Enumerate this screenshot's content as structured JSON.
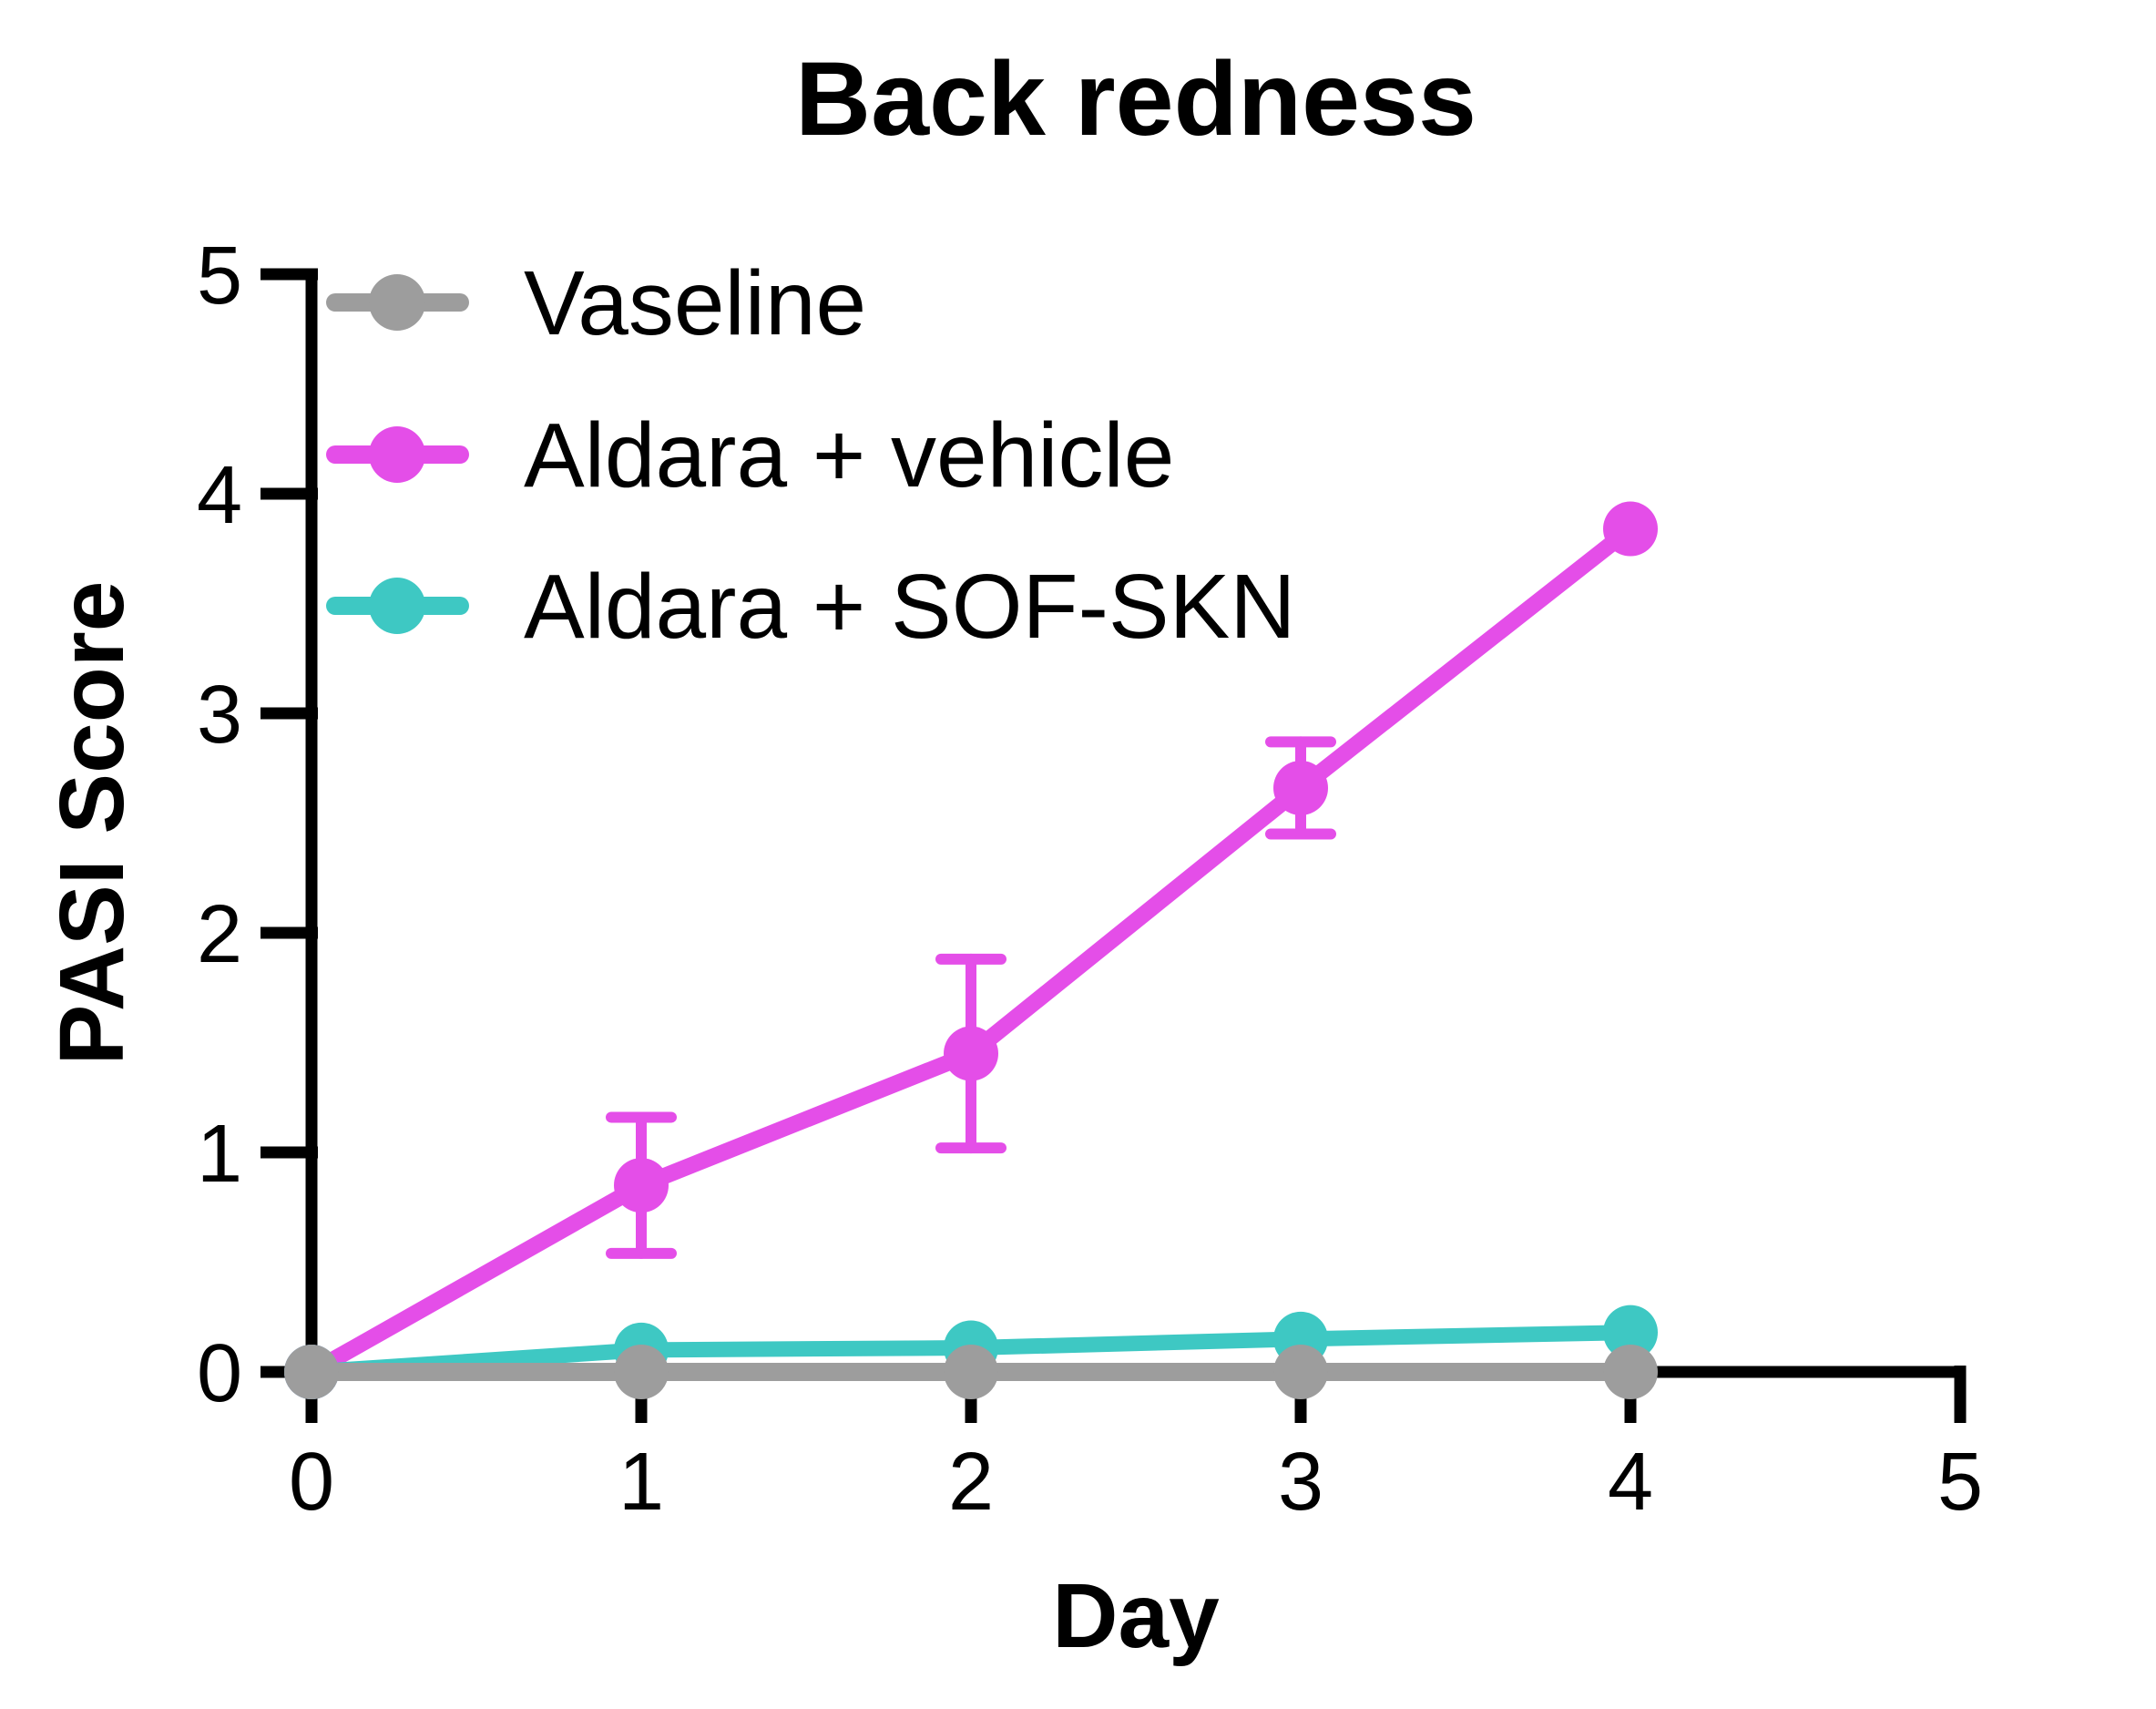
{
  "title": "Back redness",
  "colors": {
    "background": "#FFFFFF",
    "axis": "#000000",
    "text": "#000000",
    "vaseline_gray": "#9D9D9D",
    "vehicle_magenta": "#E44EE8",
    "sofskn_teal": "#3EC8C3"
  },
  "legend": {
    "entries": [
      {
        "label": "Vaseline",
        "color": "#9D9D9D"
      },
      {
        "label": "Aldara + vehicle",
        "color": "#E44EE8"
      },
      {
        "label": "Aldara + SOF-SKN",
        "color": "#3EC8C3"
      }
    ],
    "position": "top-left-inside"
  },
  "chart_data": {
    "type": "line",
    "title": "Back redness",
    "xlabel": "Day",
    "ylabel": "PASI Score",
    "x": [
      0,
      1,
      2,
      3,
      4
    ],
    "xlim": [
      0,
      5
    ],
    "ylim": [
      0,
      5
    ],
    "x_ticks": [
      "0",
      "1",
      "2",
      "3",
      "4",
      "5"
    ],
    "y_ticks": [
      "0",
      "1",
      "2",
      "3",
      "4",
      "5"
    ],
    "grid": false,
    "legend_position": "top-left-inside",
    "series": [
      {
        "name": "Vaseline",
        "color": "#9D9D9D",
        "marker": "circle",
        "values": [
          0,
          0,
          0,
          0,
          0
        ],
        "error": [
          0,
          0,
          0,
          0,
          0
        ]
      },
      {
        "name": "Aldara + vehicle",
        "color": "#E44EE8",
        "marker": "circle",
        "values": [
          0,
          0.85,
          1.45,
          2.66,
          3.84
        ],
        "error": [
          0,
          0.31,
          0.43,
          0.21,
          0
        ]
      },
      {
        "name": "Aldara + SOF-SKN",
        "color": "#3EC8C3",
        "marker": "circle",
        "values": [
          0,
          0.1,
          0.11,
          0.15,
          0.18
        ],
        "error": [
          0,
          0,
          0,
          0,
          0
        ]
      }
    ]
  }
}
